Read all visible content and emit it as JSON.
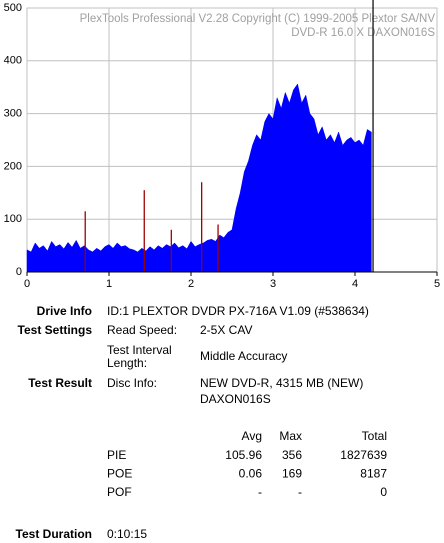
{
  "chart_data": {
    "type": "area",
    "annotations": [
      "PlexTools Professional V2.28 Copyright (C) 1999-2005 Plextor SA/NV",
      "DVD-R   16.0 X   DAXON016S"
    ],
    "series": [
      {
        "style": "area",
        "color": "#0000ff",
        "x": [
          0,
          0.05,
          0.1,
          0.15,
          0.2,
          0.25,
          0.3,
          0.35,
          0.4,
          0.45,
          0.5,
          0.55,
          0.6,
          0.65,
          0.7,
          0.75,
          0.8,
          0.85,
          0.9,
          0.95,
          1,
          1.05,
          1.1,
          1.15,
          1.2,
          1.25,
          1.3,
          1.35,
          1.4,
          1.45,
          1.5,
          1.55,
          1.6,
          1.65,
          1.7,
          1.75,
          1.8,
          1.85,
          1.9,
          1.95,
          2,
          2.05,
          2.1,
          2.15,
          2.2,
          2.25,
          2.3,
          2.35,
          2.4,
          2.45,
          2.5,
          2.55,
          2.6,
          2.65,
          2.7,
          2.75,
          2.8,
          2.85,
          2.9,
          2.95,
          3,
          3.05,
          3.1,
          3.15,
          3.2,
          3.25,
          3.3,
          3.35,
          3.4,
          3.45,
          3.5,
          3.55,
          3.6,
          3.65,
          3.7,
          3.75,
          3.8,
          3.85,
          3.9,
          3.95,
          4,
          4.05,
          4.1,
          4.15,
          4.2
        ],
        "values": [
          42,
          38,
          55,
          45,
          50,
          40,
          58,
          48,
          52,
          44,
          56,
          47,
          60,
          45,
          50,
          42,
          38,
          45,
          40,
          48,
          52,
          45,
          55,
          48,
          50,
          44,
          42,
          38,
          45,
          40,
          48,
          42,
          50,
          45,
          52,
          48,
          55,
          46,
          50,
          44,
          58,
          48,
          52,
          55,
          60,
          62,
          58,
          70,
          65,
          75,
          80,
          120,
          150,
          190,
          210,
          240,
          260,
          250,
          285,
          300,
          290,
          330,
          310,
          340,
          320,
          345,
          356,
          320,
          335,
          300,
          290,
          260,
          275,
          250,
          260,
          245,
          265,
          240,
          250,
          255,
          245,
          250,
          240,
          270,
          265
        ]
      },
      {
        "style": "stem",
        "color": "#a00000",
        "x": [
          0.71,
          1.43,
          1.76,
          2.13,
          2.33
        ],
        "values": [
          115,
          155,
          80,
          170,
          90
        ]
      }
    ],
    "marker_x": 4.22,
    "xlim": [
      0,
      5
    ],
    "xticks": [
      0,
      1,
      2,
      3,
      4,
      5
    ],
    "ylim": [
      0,
      500
    ],
    "yticks": [
      0,
      100,
      200,
      300,
      400,
      500
    ],
    "grid": true
  },
  "info": {
    "drive_info": {
      "label": "Drive Info",
      "value": "ID:1 PLEXTOR DVDR PX-716A V1.09 (#538634)"
    },
    "test_settings": {
      "label": "Test Settings",
      "rows": [
        {
          "key": [
            "Read Speed:"
          ],
          "value": [
            "2-5X CAV"
          ]
        },
        {
          "key": [
            "Test Interval",
            "Length:"
          ],
          "value": [
            "Middle Accuracy"
          ]
        }
      ]
    },
    "test_result": {
      "label": "Test Result",
      "rows": [
        {
          "key": [
            "Disc Info:"
          ],
          "value": [
            "NEW DVD-R, 4315 MB (NEW)",
            "DAXON016S"
          ]
        }
      ]
    },
    "stats": {
      "columns": [
        "Avg",
        "Max",
        "Total"
      ],
      "rows": [
        {
          "name": "PIE",
          "cells": [
            "105.96",
            "356",
            "1827639"
          ]
        },
        {
          "name": "POE",
          "cells": [
            "0.06",
            "169",
            "8187"
          ]
        },
        {
          "name": "POF",
          "cells": [
            "-",
            "-",
            "0"
          ]
        }
      ]
    },
    "test_duration": {
      "label": "Test Duration",
      "value": "0:10:15"
    }
  }
}
